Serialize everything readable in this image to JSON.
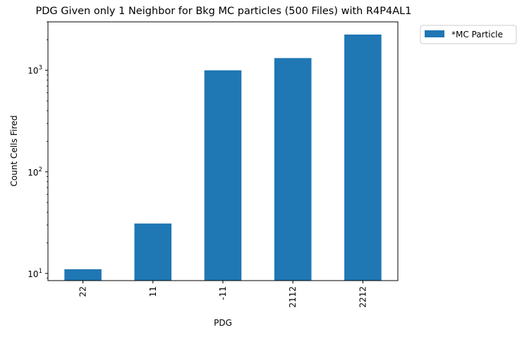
{
  "chart_data": {
    "type": "bar",
    "title": "PDG Given only 1 Neighbor for Bkg MC particles (500 Files) with R4P4AL1",
    "xlabel": "PDG",
    "ylabel": "Count Cells Fired",
    "categories": [
      "22",
      "11",
      "-11",
      "2112",
      "2212"
    ],
    "series": [
      {
        "name": "*MC Particle",
        "values": [
          11,
          31,
          1000,
          1320,
          2250
        ],
        "color": "#1f77b4"
      }
    ],
    "yscale": "log",
    "ylim": [
      8.5,
      3000
    ],
    "yticks": [
      {
        "value": 10,
        "base": "10",
        "exp": "1"
      },
      {
        "value": 100,
        "base": "10",
        "exp": "2"
      },
      {
        "value": 1000,
        "base": "10",
        "exp": "3"
      }
    ],
    "xtick_rotation": 90,
    "grid": false,
    "legend_position": "outside-top-right"
  }
}
